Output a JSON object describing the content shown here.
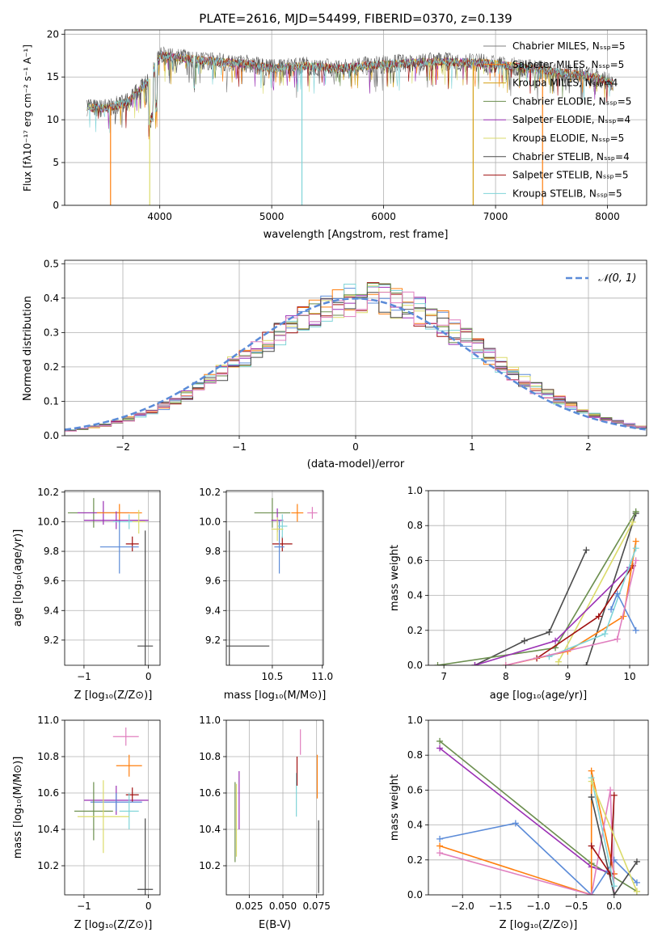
{
  "colors": {
    "grey": "#7f7f7f",
    "orange": "#ff7f0e",
    "gold": "#d4a017",
    "green": "#6b8e4e",
    "purple": "#9b30b5",
    "yellow": "#dbdb6b",
    "black": "#4a4a4a",
    "darkred": "#a01010",
    "cyan": "#7fd4d8",
    "blue": "#5b8bd8",
    "pink": "#e07fbf",
    "forest": "#3a9a3a"
  },
  "chart_data": [
    {
      "type": "line",
      "title": "PLATE=2616, MJD=54499, FIBERID=0370, z=0.139",
      "xlabel": "wavelength [Angstrom, rest frame]",
      "ylabel": "Flux [fλ10⁻¹⁷ erg cm⁻² s⁻¹ A⁻¹]",
      "xlim": [
        3150,
        8350
      ],
      "ylim": [
        0,
        20.5
      ],
      "xticks": [
        "4000",
        "5000",
        "6000",
        "7000",
        "8000"
      ],
      "yticks": [
        "0",
        "5",
        "10",
        "15",
        "20"
      ],
      "legend_position": "upper-right",
      "series": [
        {
          "name": "Chabrier MILES, Nₛₛₚ=5",
          "color": "#7f7f7f"
        },
        {
          "name": "Salpeter MILES, Nₛₛₚ=5",
          "color": "#ff7f0e"
        },
        {
          "name": "Kroupa MILES, Nₛₛₚ=4",
          "color": "#d4a017"
        },
        {
          "name": "Chabrier ELODIE, Nₛₛₚ=5",
          "color": "#6b8e4e"
        },
        {
          "name": "Salpeter ELODIE, Nₛₛₚ=4",
          "color": "#9b30b5"
        },
        {
          "name": "Kroupa ELODIE, Nₛₛₚ=5",
          "color": "#dbdb6b"
        },
        {
          "name": "Chabrier STELIB, Nₛₛₚ=4",
          "color": "#4a4a4a"
        },
        {
          "name": "Salpeter STELIB, Nₛₛₚ=5",
          "color": "#a01010"
        },
        {
          "name": "Kroupa STELIB, Nₛₛₚ=5",
          "color": "#7fd4d8"
        }
      ],
      "continuum": {
        "x": [
          3350,
          3500,
          3700,
          3900,
          4000,
          4200,
          4500,
          4800,
          5000,
          5300,
          5600,
          5900,
          6200,
          6500,
          6800,
          7000,
          7300,
          7600,
          7900,
          8050
        ],
        "y": [
          11.5,
          11.3,
          12.0,
          14.5,
          17.5,
          17.2,
          16.8,
          16.5,
          16.0,
          16.3,
          16.0,
          16.4,
          16.6,
          16.8,
          16.7,
          16.5,
          16.0,
          15.5,
          15.0,
          14.2
        ]
      },
      "drops": [
        {
          "x": 3560,
          "color": "#ff7f0e"
        },
        {
          "x": 3910,
          "color": "#dbdb6b"
        },
        {
          "x": 5270,
          "color": "#7fd4d8"
        },
        {
          "x": 6800,
          "color": "#d4a017"
        },
        {
          "x": 7420,
          "color": "#ff7f0e"
        }
      ]
    },
    {
      "type": "histogram",
      "xlabel": "(data-model)/error",
      "ylabel": "Normed distribution",
      "xlim": [
        -2.5,
        2.5
      ],
      "ylim": [
        0,
        0.51
      ],
      "xticks": [
        "−2",
        "−1",
        "0",
        "1",
        "2"
      ],
      "yticks": [
        "0.0",
        "0.1",
        "0.2",
        "0.3",
        "0.4",
        "0.5"
      ],
      "legend_position": "upper-right",
      "reference": {
        "name": "𝒩(0, 1)",
        "color": "#5b8bd8"
      },
      "bins": 50,
      "series_colors": [
        "#5b8bd8",
        "#ff7f0e",
        "#a01010",
        "#dbdb6b",
        "#9b30b5",
        "#7fd4d8",
        "#6b8e4e",
        "#4a4a4a",
        "#e07fbf"
      ]
    },
    {
      "type": "scatter",
      "xlabel": "Z [log₁₀(Z/Z⊙)]",
      "ylabel": "age  [log₁₀(age/yr)]",
      "xlim": [
        -1.3,
        0.18
      ],
      "ylim": [
        9.03,
        10.21
      ],
      "xticks": [
        "−1",
        "0"
      ],
      "yticks": [
        "9.2",
        "9.4",
        "9.6",
        "9.8",
        "10.0",
        "10.2"
      ],
      "points": [
        {
          "x": -0.85,
          "y": 10.06,
          "xerr": 0.4,
          "yerr": 0.1,
          "color": "#6b8e4e"
        },
        {
          "x": -0.7,
          "y": 10.06,
          "xerr": 0.4,
          "yerr": 0.08,
          "color": "#9b30b5"
        },
        {
          "x": -0.45,
          "y": 10.06,
          "xerr": 0.35,
          "yerr": 0.06,
          "color": "#ff7f0e"
        },
        {
          "x": -0.5,
          "y": 10.01,
          "xerr": 0.5,
          "yerr": 0.06,
          "color": "#9b30b5"
        },
        {
          "x": -0.3,
          "y": 10.0,
          "xerr": 0.25,
          "yerr": 0.05,
          "color": "#7fd4d8"
        },
        {
          "x": -0.25,
          "y": 9.85,
          "xerr": 0.1,
          "yerr": 0.05,
          "color": "#a01010"
        },
        {
          "x": -0.45,
          "y": 9.83,
          "xerr": 0.3,
          "yerr": 0.18,
          "color": "#5b8bd8"
        },
        {
          "x": -0.05,
          "y": 9.16,
          "xerr": 0.12,
          "yerr": 0.78,
          "color": "#4a4a4a"
        },
        {
          "x": -0.15,
          "y": 10.0,
          "xerr": 0.1,
          "yerr": 0.08,
          "color": "#dbdb6b"
        }
      ]
    },
    {
      "type": "scatter",
      "xlabel": "mass [log₁₀(M/M⊙)]",
      "ylabel": "",
      "xlim": [
        10.04,
        11.01
      ],
      "ylim": [
        9.03,
        10.21
      ],
      "xticks": [
        "10.5",
        "11.0"
      ],
      "yticks": [
        "9.2",
        "9.4",
        "9.6",
        "9.8",
        "10.0",
        "10.2"
      ],
      "points": [
        {
          "x": 10.5,
          "y": 10.06,
          "xerr": 0.18,
          "yerr": 0.1,
          "color": "#6b8e4e"
        },
        {
          "x": 10.75,
          "y": 10.06,
          "xerr": 0.06,
          "yerr": 0.06,
          "color": "#ff7f0e"
        },
        {
          "x": 10.9,
          "y": 10.06,
          "xerr": 0.05,
          "yerr": 0.04,
          "color": "#e07fbf"
        },
        {
          "x": 10.55,
          "y": 10.01,
          "xerr": 0.06,
          "yerr": 0.08,
          "color": "#9b30b5"
        },
        {
          "x": 10.6,
          "y": 9.85,
          "xerr": 0.1,
          "yerr": 0.05,
          "color": "#a01010"
        },
        {
          "x": 10.57,
          "y": 9.83,
          "xerr": 0.05,
          "yerr": 0.18,
          "color": "#5b8bd8"
        },
        {
          "x": 10.07,
          "y": 9.16,
          "xerr": 0.4,
          "yerr": 0.78,
          "color": "#4a4a4a"
        },
        {
          "x": 10.6,
          "y": 9.97,
          "xerr": 0.05,
          "yerr": 0.08,
          "color": "#7fd4d8"
        },
        {
          "x": 10.55,
          "y": 9.95,
          "xerr": 0.06,
          "yerr": 0.08,
          "color": "#dbdb6b"
        }
      ]
    },
    {
      "type": "line",
      "xlabel": "age  [log₁₀(age/yr)]",
      "ylabel": "mass weight",
      "xlim": [
        6.75,
        10.3
      ],
      "ylim": [
        0,
        1.0
      ],
      "xticks": [
        "7",
        "8",
        "9",
        "10"
      ],
      "yticks": [
        "0.0",
        "0.2",
        "0.4",
        "0.6",
        "0.8",
        "1.0"
      ],
      "series": [
        {
          "color": "#4a4a4a",
          "x": [
            7.5,
            8.3,
            8.7,
            9.3
          ],
          "y": [
            0.0,
            0.14,
            0.19,
            0.66
          ]
        },
        {
          "color": "#4a4a4a",
          "x": [
            9.3,
            10.1
          ],
          "y": [
            0.0,
            0.87
          ]
        },
        {
          "color": "#6b8e4e",
          "x": [
            6.9,
            8.8,
            10.1
          ],
          "y": [
            0.0,
            0.1,
            0.88
          ]
        },
        {
          "color": "#dbdb6b",
          "x": [
            8.85,
            10.05
          ],
          "y": [
            0.02,
            0.82
          ]
        },
        {
          "color": "#9b30b5",
          "x": [
            7.5,
            8.8,
            10.0
          ],
          "y": [
            0.0,
            0.14,
            0.56
          ]
        },
        {
          "color": "#a01010",
          "x": [
            8.5,
            9.5,
            10.05
          ],
          "y": [
            0.04,
            0.28,
            0.57
          ]
        },
        {
          "color": "#ff7f0e",
          "x": [
            8.0,
            9.0,
            9.9,
            10.1
          ],
          "y": [
            0.0,
            0.08,
            0.28,
            0.71
          ]
        },
        {
          "color": "#7fd4d8",
          "x": [
            8.7,
            9.6,
            10.1
          ],
          "y": [
            0.05,
            0.18,
            0.67
          ]
        },
        {
          "color": "#5b8bd8",
          "x": [
            9.7,
            9.8,
            10.1
          ],
          "y": [
            0.32,
            0.41,
            0.2
          ]
        },
        {
          "color": "#e07fbf",
          "x": [
            8.0,
            9.8,
            10.1
          ],
          "y": [
            0.0,
            0.15,
            0.6
          ]
        }
      ]
    },
    {
      "type": "scatter",
      "xlabel": "Z [log₁₀(Z/Z⊙)]",
      "ylabel": "mass [log₁₀(M/M⊙)]",
      "xlim": [
        -1.3,
        0.18
      ],
      "ylim": [
        10.04,
        11.0
      ],
      "xticks": [
        "−1",
        "0"
      ],
      "yticks": [
        "10.2",
        "10.4",
        "10.6",
        "10.8",
        "11.0"
      ],
      "points": [
        {
          "x": -0.35,
          "y": 10.91,
          "xerr": 0.2,
          "yerr": 0.05,
          "color": "#e07fbf"
        },
        {
          "x": -0.3,
          "y": 10.75,
          "xerr": 0.2,
          "yerr": 0.06,
          "color": "#ff7f0e"
        },
        {
          "x": -0.5,
          "y": 10.56,
          "xerr": 0.5,
          "yerr": 0.08,
          "color": "#9b30b5"
        },
        {
          "x": -0.25,
          "y": 10.59,
          "xerr": 0.1,
          "yerr": 0.04,
          "color": "#a01010"
        },
        {
          "x": -0.5,
          "y": 10.55,
          "xerr": 0.4,
          "yerr": 0.05,
          "color": "#5b8bd8"
        },
        {
          "x": -0.85,
          "y": 10.5,
          "xerr": 0.3,
          "yerr": 0.16,
          "color": "#6b8e4e"
        },
        {
          "x": -0.3,
          "y": 10.5,
          "xerr": 0.15,
          "yerr": 0.1,
          "color": "#7fd4d8"
        },
        {
          "x": -0.7,
          "y": 10.47,
          "xerr": 0.4,
          "yerr": 0.2,
          "color": "#dbdb6b"
        },
        {
          "x": -0.05,
          "y": 10.07,
          "xerr": 0.12,
          "yerr": 0.39,
          "color": "#4a4a4a"
        }
      ]
    },
    {
      "type": "scatter",
      "xlabel": "E(B-V)",
      "ylabel": "",
      "xlim": [
        0.008,
        0.08
      ],
      "ylim": [
        10.04,
        11.0
      ],
      "xticks": [
        "0.025",
        "0.050",
        "0.075"
      ],
      "yticks": [
        "10.2",
        "10.4",
        "10.6",
        "10.8",
        "11.0"
      ],
      "points": [
        {
          "x": 0.0145,
          "y": 10.44,
          "yerr": 0.22,
          "color": "#6b8e4e"
        },
        {
          "x": 0.0155,
          "y": 10.45,
          "yerr": 0.2,
          "color": "#dbdb6b"
        },
        {
          "x": 0.0175,
          "y": 10.56,
          "yerr": 0.16,
          "color": "#9b30b5"
        },
        {
          "x": 0.06,
          "y": 10.59,
          "yerr": 0.12,
          "color": "#7fd4d8"
        },
        {
          "x": 0.0605,
          "y": 10.72,
          "yerr": 0.08,
          "color": "#a01010"
        },
        {
          "x": 0.063,
          "y": 10.88,
          "yerr": 0.07,
          "color": "#e07fbf"
        },
        {
          "x": 0.0755,
          "y": 10.69,
          "yerr": 0.12,
          "color": "#ff7f0e"
        },
        {
          "x": 0.0765,
          "y": 10.25,
          "yerr": 0.2,
          "color": "#4a4a4a"
        }
      ]
    },
    {
      "type": "line",
      "xlabel": "Z [log₁₀(Z/Z⊙)]",
      "ylabel": "mass weight",
      "xlim": [
        -2.45,
        0.45
      ],
      "ylim": [
        0,
        1.0
      ],
      "xticks": [
        "−2.0",
        "−1.5",
        "−1.0",
        "−0.5",
        "0.0"
      ],
      "yticks": [
        "0.0",
        "0.2",
        "0.4",
        "0.6",
        "0.8",
        "1.0"
      ],
      "series": [
        {
          "color": "#6b8e4e",
          "x": [
            -2.3,
            -0.3,
            0.3
          ],
          "y": [
            0.88,
            0.18,
            0.02
          ]
        },
        {
          "color": "#9b30b5",
          "x": [
            -2.3,
            -0.3,
            0.0
          ],
          "y": [
            0.84,
            0.16,
            0.12
          ]
        },
        {
          "color": "#5b8bd8",
          "x": [
            -2.3,
            -1.3,
            -0.3,
            0.0,
            0.3
          ],
          "y": [
            0.32,
            0.41,
            0.0,
            0.2,
            0.07
          ]
        },
        {
          "color": "#ff7f0e",
          "x": [
            -2.3,
            -0.3,
            -0.3,
            0.0
          ],
          "y": [
            0.28,
            0.0,
            0.71,
            0.12
          ]
        },
        {
          "color": "#e07fbf",
          "x": [
            -2.3,
            -0.3,
            -0.05,
            0.0
          ],
          "y": [
            0.24,
            0.0,
            0.6,
            0.0
          ]
        },
        {
          "color": "#4a4a4a",
          "x": [
            -0.3,
            0.0,
            0.3
          ],
          "y": [
            0.56,
            0.0,
            0.19
          ]
        },
        {
          "color": "#a01010",
          "x": [
            -0.3,
            -0.05,
            0.0
          ],
          "y": [
            0.28,
            0.12,
            0.57
          ]
        },
        {
          "color": "#7fd4d8",
          "x": [
            -0.3,
            0.0
          ],
          "y": [
            0.67,
            0.05
          ]
        },
        {
          "color": "#dbdb6b",
          "x": [
            -0.3,
            0.3
          ],
          "y": [
            0.65,
            0.02
          ]
        }
      ]
    }
  ]
}
